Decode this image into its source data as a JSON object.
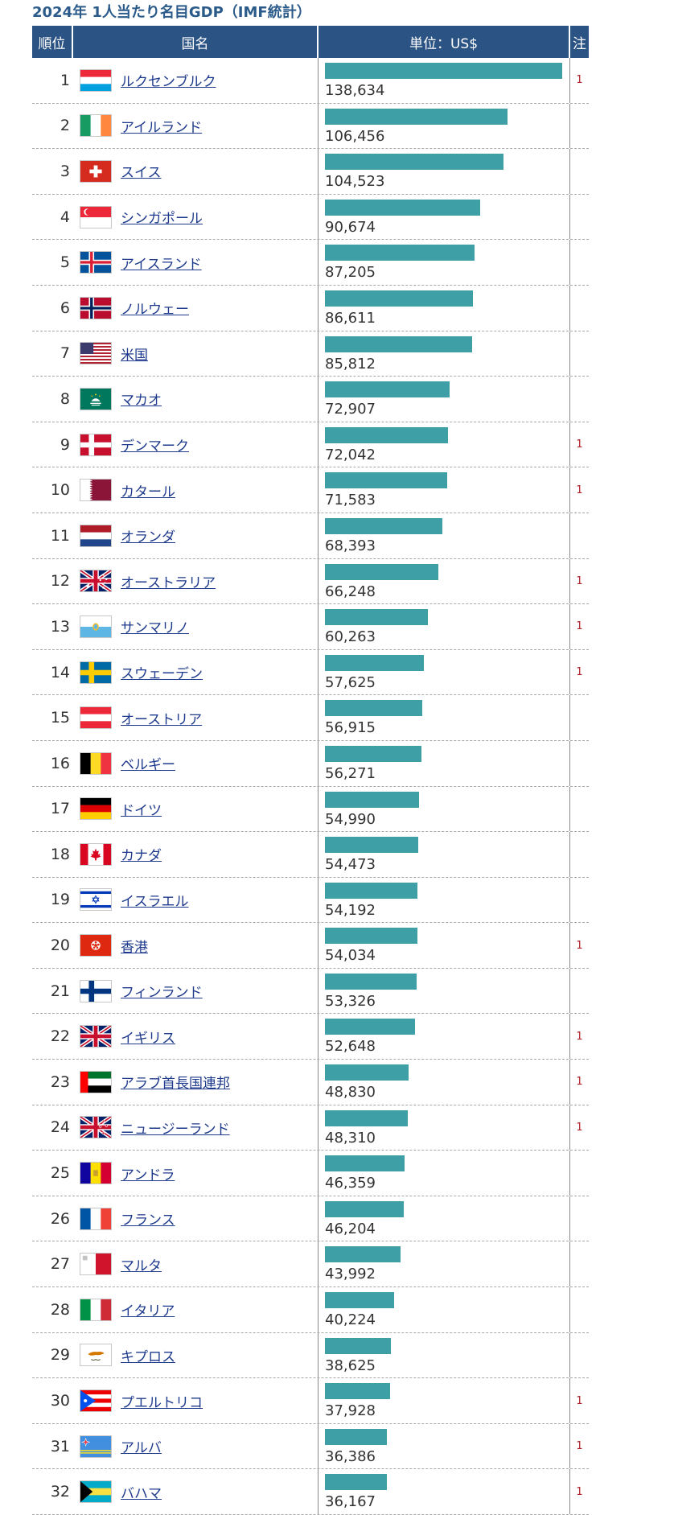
{
  "title": "2024年 1人当たり名目GDP（IMF統計）",
  "headers": {
    "rank": "順位",
    "name": "国名",
    "value": "単位：US$",
    "note": "注"
  },
  "colors": {
    "bar": "#3f9fa6",
    "header": "#2b5384",
    "link": "#1e3a8c",
    "note": "#b0202a"
  },
  "chart_data": {
    "type": "bar",
    "unit": "US$",
    "xlim": [
      0,
      140000
    ],
    "rows": [
      {
        "rank": "1",
        "country": "ルクセンブルク",
        "flag": "luxembourg-flag",
        "value": 138634,
        "value_label": "138,634",
        "note": "1"
      },
      {
        "rank": "2",
        "country": "アイルランド",
        "flag": "ireland-flag",
        "value": 106456,
        "value_label": "106,456",
        "note": ""
      },
      {
        "rank": "3",
        "country": "スイス",
        "flag": "switzerland-flag",
        "value": 104523,
        "value_label": "104,523",
        "note": ""
      },
      {
        "rank": "4",
        "country": "シンガポール",
        "flag": "singapore-flag",
        "value": 90674,
        "value_label": "90,674",
        "note": ""
      },
      {
        "rank": "5",
        "country": "アイスランド",
        "flag": "iceland-flag",
        "value": 87205,
        "value_label": "87,205",
        "note": ""
      },
      {
        "rank": "6",
        "country": "ノルウェー",
        "flag": "norway-flag",
        "value": 86611,
        "value_label": "86,611",
        "note": ""
      },
      {
        "rank": "7",
        "country": "米国",
        "flag": "usa-flag",
        "value": 85812,
        "value_label": "85,812",
        "note": ""
      },
      {
        "rank": "8",
        "country": "マカオ",
        "flag": "macao-flag",
        "value": 72907,
        "value_label": "72,907",
        "note": ""
      },
      {
        "rank": "9",
        "country": "デンマーク",
        "flag": "denmark-flag",
        "value": 72042,
        "value_label": "72,042",
        "note": "1"
      },
      {
        "rank": "10",
        "country": "カタール",
        "flag": "qatar-flag",
        "value": 71583,
        "value_label": "71,583",
        "note": "1"
      },
      {
        "rank": "11",
        "country": "オランダ",
        "flag": "netherlands-flag",
        "value": 68393,
        "value_label": "68,393",
        "note": ""
      },
      {
        "rank": "12",
        "country": "オーストラリア",
        "flag": "australia-flag",
        "value": 66248,
        "value_label": "66,248",
        "note": "1"
      },
      {
        "rank": "13",
        "country": "サンマリノ",
        "flag": "san-marino-flag",
        "value": 60263,
        "value_label": "60,263",
        "note": "1"
      },
      {
        "rank": "14",
        "country": "スウェーデン",
        "flag": "sweden-flag",
        "value": 57625,
        "value_label": "57,625",
        "note": "1"
      },
      {
        "rank": "15",
        "country": "オーストリア",
        "flag": "austria-flag",
        "value": 56915,
        "value_label": "56,915",
        "note": ""
      },
      {
        "rank": "16",
        "country": "ベルギー",
        "flag": "belgium-flag",
        "value": 56271,
        "value_label": "56,271",
        "note": ""
      },
      {
        "rank": "17",
        "country": "ドイツ",
        "flag": "germany-flag",
        "value": 54990,
        "value_label": "54,990",
        "note": ""
      },
      {
        "rank": "18",
        "country": "カナダ",
        "flag": "canada-flag",
        "value": 54473,
        "value_label": "54,473",
        "note": ""
      },
      {
        "rank": "19",
        "country": "イスラエル",
        "flag": "israel-flag",
        "value": 54192,
        "value_label": "54,192",
        "note": ""
      },
      {
        "rank": "20",
        "country": "香港",
        "flag": "hong-kong-flag",
        "value": 54034,
        "value_label": "54,034",
        "note": "1"
      },
      {
        "rank": "21",
        "country": "フィンランド",
        "flag": "finland-flag",
        "value": 53326,
        "value_label": "53,326",
        "note": ""
      },
      {
        "rank": "22",
        "country": "イギリス",
        "flag": "uk-flag",
        "value": 52648,
        "value_label": "52,648",
        "note": "1"
      },
      {
        "rank": "23",
        "country": "アラブ首長国連邦",
        "flag": "uae-flag",
        "value": 48830,
        "value_label": "48,830",
        "note": "1"
      },
      {
        "rank": "24",
        "country": "ニュージーランド",
        "flag": "new-zealand-flag",
        "value": 48310,
        "value_label": "48,310",
        "note": "1"
      },
      {
        "rank": "25",
        "country": "アンドラ",
        "flag": "andorra-flag",
        "value": 46359,
        "value_label": "46,359",
        "note": ""
      },
      {
        "rank": "26",
        "country": "フランス",
        "flag": "france-flag",
        "value": 46204,
        "value_label": "46,204",
        "note": ""
      },
      {
        "rank": "27",
        "country": "マルタ",
        "flag": "malta-flag",
        "value": 43992,
        "value_label": "43,992",
        "note": ""
      },
      {
        "rank": "28",
        "country": "イタリア",
        "flag": "italy-flag",
        "value": 40224,
        "value_label": "40,224",
        "note": ""
      },
      {
        "rank": "29",
        "country": "キプロス",
        "flag": "cyprus-flag",
        "value": 38625,
        "value_label": "38,625",
        "note": ""
      },
      {
        "rank": "30",
        "country": "プエルトリコ",
        "flag": "puerto-rico-flag",
        "value": 37928,
        "value_label": "37,928",
        "note": "1"
      },
      {
        "rank": "31",
        "country": "アルバ",
        "flag": "aruba-flag",
        "value": 36386,
        "value_label": "36,386",
        "note": "1"
      },
      {
        "rank": "32",
        "country": "バハマ",
        "flag": "bahamas-flag",
        "value": 36167,
        "value_label": "36,167",
        "note": "1"
      }
    ]
  }
}
